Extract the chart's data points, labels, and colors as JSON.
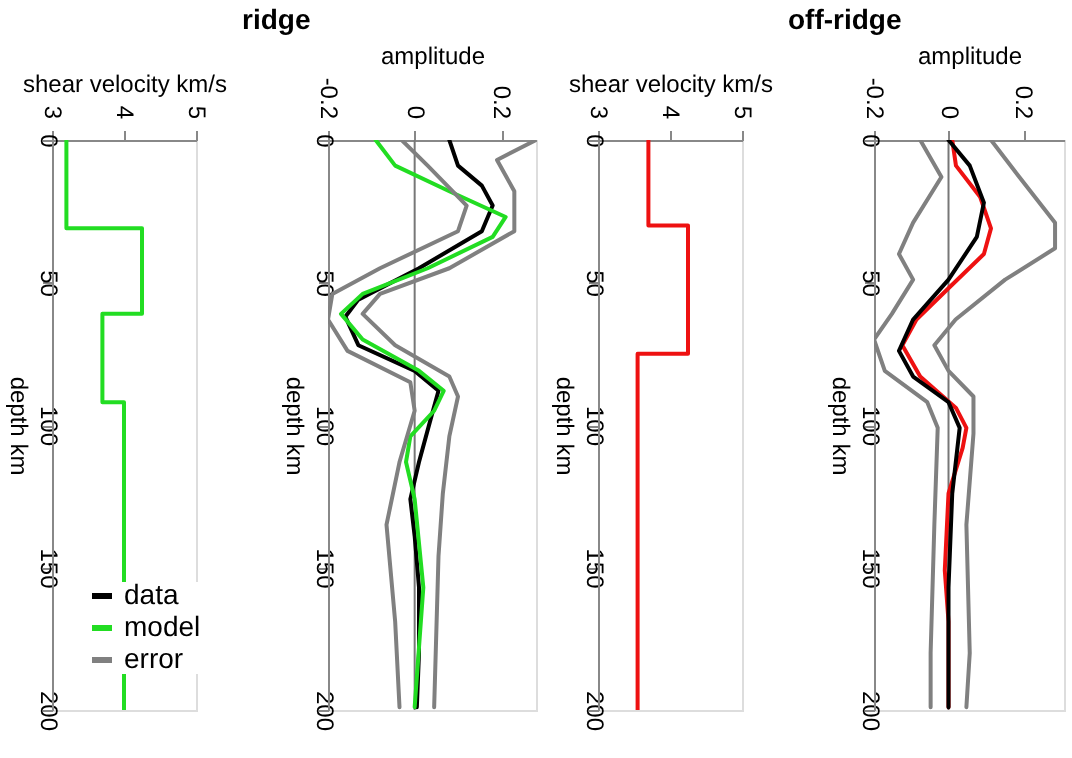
{
  "chart_data": [
    {
      "type": "line",
      "xlabel": "shear velocity km/s",
      "ylabel": "depth km",
      "xlim": [
        3,
        5
      ],
      "xticks": [
        3,
        4,
        5
      ],
      "ylim": [
        200,
        0
      ],
      "yticks": [
        0,
        50,
        100,
        150,
        200
      ],
      "series": [
        {
          "color": "#22dd22",
          "x": [
            3.2,
            3.2,
            4.25,
            4.25,
            3.7,
            3.7,
            4.0,
            4.0
          ],
          "values": [
            0,
            31,
            31,
            61,
            61,
            92,
            92,
            200
          ]
        }
      ]
    },
    {
      "type": "line",
      "title": "ridge",
      "xlabel": "amplitude",
      "ylabel": "depth km",
      "xlim": [
        -0.2,
        0.28
      ],
      "xticks": [
        {
          "value": -0.2,
          "label": "-0.2"
        },
        0,
        0.2
      ],
      "ylim": [
        200,
        0
      ],
      "yticks": [
        0,
        50,
        100,
        150,
        200
      ],
      "legend": "bottom left",
      "ref_lines": [
        {
          "axis": "x",
          "value": 0,
          "color": "#777777"
        }
      ],
      "series": [
        {
          "name": "data",
          "color": "#000000",
          "x": [
            0.08,
            0.1,
            0.155,
            0.18,
            0.155,
            0.01,
            -0.13,
            -0.16,
            -0.13,
            0,
            0.055,
            0.035,
            0.01,
            -0.01,
            0,
            0.01,
            0.01,
            0.005
          ],
          "values": [
            0,
            9,
            16,
            23,
            32,
            45,
            56,
            62,
            72,
            81,
            88,
            99,
            113,
            126,
            139,
            157,
            180,
            199
          ]
        },
        {
          "name": "model",
          "color": "#22dd22",
          "x": [
            -0.09,
            -0.045,
            0.08,
            0.21,
            0.18,
            0.03,
            -0.12,
            -0.17,
            -0.12,
            0.01,
            0.067,
            0.045,
            -0.01,
            -0.02,
            0,
            0.02,
            0
          ],
          "values": [
            0,
            9,
            18,
            27,
            34,
            45,
            54,
            61,
            70,
            81,
            88,
            95,
            104,
            113,
            126,
            157,
            199
          ]
        },
        {
          "name": "error",
          "color": "#808080",
          "x": [
            0.28,
            0.19,
            0.23,
            0.23,
            0.08,
            -0.08,
            -0.12,
            -0.045,
            0.08,
            0.1,
            0.08,
            0.065,
            0.055,
            0.045
          ],
          "values": [
            0,
            7,
            18,
            32,
            45,
            54,
            61,
            72,
            83,
            90,
            104,
            124,
            146,
            199
          ]
        },
        {
          "color": "#808080",
          "x": [
            -0.03,
            0.03,
            0.12,
            0.1,
            -0.08,
            -0.19,
            -0.2,
            -0.155,
            -0.01,
            0,
            -0.035,
            -0.065,
            -0.045,
            -0.035
          ],
          "values": [
            0,
            9,
            23,
            32,
            45,
            54,
            63,
            74,
            85,
            95,
            113,
            135,
            169,
            199
          ]
        }
      ]
    },
    {
      "type": "line",
      "xlabel": "shear velocity km/s",
      "ylabel": "depth km",
      "xlim": [
        3,
        5
      ],
      "xticks": [
        3,
        4,
        5
      ],
      "ylim": [
        200,
        0
      ],
      "yticks": [
        0,
        50,
        100,
        150,
        200
      ],
      "series": [
        {
          "color": "#ee1111",
          "x": [
            3.7,
            3.7,
            4.25,
            4.25,
            3.55,
            3.55
          ],
          "values": [
            0,
            30,
            30,
            75,
            75,
            200
          ]
        }
      ]
    },
    {
      "type": "line",
      "title": "off-ridge",
      "xlabel": "amplitude",
      "ylabel": "depth km",
      "xlim": [
        -0.2,
        0.31
      ],
      "xticks": [
        {
          "value": -0.2,
          "label": "-0.2"
        },
        0,
        0.2
      ],
      "ylim": [
        200,
        0
      ],
      "yticks": [
        0,
        50,
        100,
        150,
        200
      ],
      "ref_lines": [
        {
          "axis": "x",
          "value": 0,
          "color": "#777777"
        }
      ],
      "series": [
        {
          "color": "#808080",
          "x": [
            0.114,
            0.19,
            0.286,
            0.286,
            0.152,
            0.019,
            -0.038,
            0,
            0.067,
            0.067,
            0.048,
            0.057,
            0.048
          ],
          "values": [
            0,
            13,
            29,
            38,
            49,
            63,
            72,
            81,
            90,
            103,
            135,
            180,
            199
          ]
        },
        {
          "color": "#808080",
          "x": [
            -0.076,
            -0.019,
            -0.095,
            -0.133,
            -0.095,
            -0.152,
            -0.2,
            -0.171,
            -0.057,
            -0.029,
            -0.038,
            -0.048,
            -0.048
          ],
          "values": [
            0,
            13,
            29,
            40,
            49,
            61,
            70,
            81,
            92,
            101,
            135,
            180,
            199
          ]
        },
        {
          "color": "#ee1111",
          "x": [
            0.01,
            0.02,
            0.085,
            0.114,
            0.095,
            0,
            -0.086,
            -0.124,
            -0.076,
            0.02,
            0.048,
            0.038,
            0,
            -0.01,
            0,
            0
          ],
          "values": [
            0,
            9,
            20,
            31,
            40,
            52,
            63,
            72,
            83,
            94,
            101,
            108,
            124,
            151,
            169,
            199
          ]
        },
        {
          "color": "#000000",
          "x": [
            0,
            0.057,
            0.095,
            0.076,
            0,
            -0.095,
            -0.133,
            -0.095,
            0,
            0.03,
            0.01,
            0,
            0
          ],
          "values": [
            0,
            9,
            22,
            34,
            49,
            63,
            74,
            83,
            92,
            101,
            124,
            157,
            199
          ]
        }
      ]
    }
  ]
}
